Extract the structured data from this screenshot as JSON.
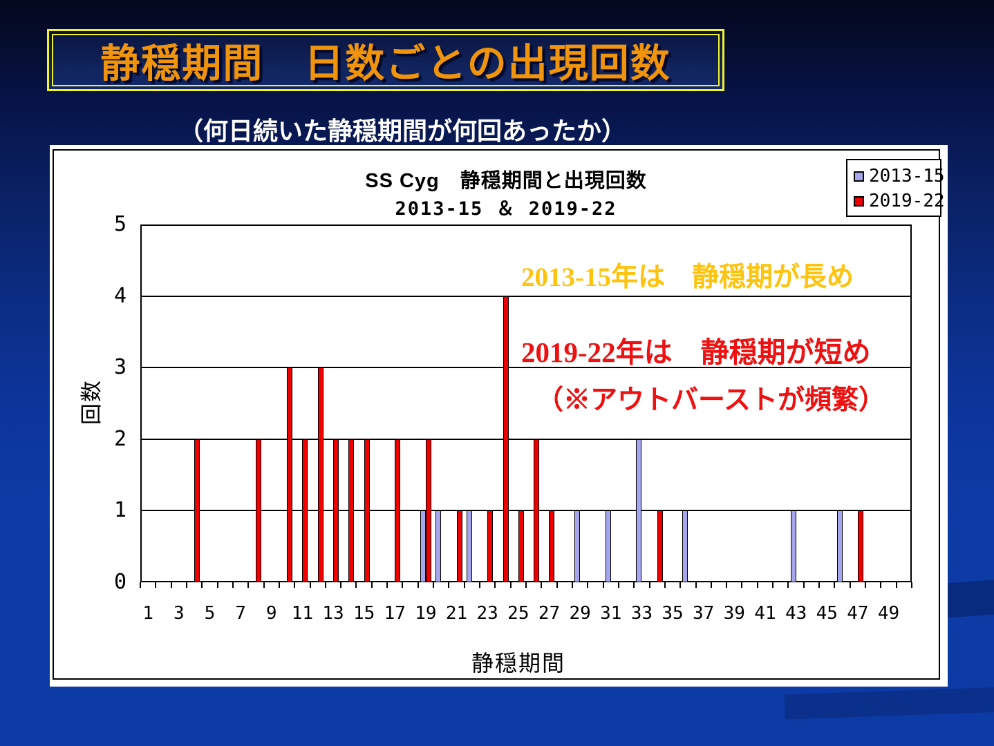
{
  "slide": {
    "title": "静穏期間　日数ごとの出現回数",
    "subtitle": "（何日続いた静穏期間が何回あったか）"
  },
  "annotations": {
    "line1": {
      "text": "2013-15年は　静穏期が長め",
      "color": "#fdc30e"
    },
    "line2": {
      "text": "2019-22年は　静穏期が短め",
      "color": "#ee1111"
    },
    "line3": {
      "text": "（※アウトバーストが頻繁）",
      "color": "#ee1111"
    }
  },
  "theme": {
    "background_top": "#04081c",
    "background_bottom": "#0d3ba6",
    "title_text_color": "#f0940c",
    "title_border_color": "#f2f22a",
    "panel_color": "#ffffff"
  },
  "chart_data": {
    "type": "bar",
    "title": "SS Cyg　静穏期間と出現回数",
    "subtitle": "2013-15 ＆ 2019-22",
    "xlabel": "静穏期間",
    "ylabel": "回数",
    "ylim": [
      0,
      5
    ],
    "y_ticks": [
      0,
      1,
      2,
      3,
      4,
      5
    ],
    "x_range": [
      1,
      50
    ],
    "x_tick_labels": [
      1,
      3,
      5,
      7,
      9,
      11,
      13,
      15,
      17,
      19,
      21,
      23,
      25,
      27,
      29,
      31,
      33,
      35,
      37,
      39,
      41,
      43,
      45,
      47,
      49
    ],
    "grid": true,
    "legend_position": "top-right",
    "series": [
      {
        "name": "2013-15",
        "color": "#a6a6ef",
        "points": [
          [
            19,
            1
          ],
          [
            20,
            1
          ],
          [
            22,
            1
          ],
          [
            29,
            1
          ],
          [
            31,
            1
          ],
          [
            33,
            2
          ],
          [
            36,
            1
          ],
          [
            43,
            1
          ],
          [
            46,
            1
          ]
        ]
      },
      {
        "name": "2019-22",
        "color": "#ee0000",
        "points": [
          [
            4,
            2
          ],
          [
            8,
            2
          ],
          [
            10,
            3
          ],
          [
            11,
            2
          ],
          [
            12,
            3
          ],
          [
            13,
            2
          ],
          [
            14,
            2
          ],
          [
            15,
            2
          ],
          [
            17,
            2
          ],
          [
            19,
            2
          ],
          [
            21,
            1
          ],
          [
            23,
            1
          ],
          [
            24,
            4
          ],
          [
            25,
            1
          ],
          [
            26,
            2
          ],
          [
            27,
            1
          ],
          [
            34,
            1
          ],
          [
            47,
            1
          ]
        ]
      }
    ]
  }
}
